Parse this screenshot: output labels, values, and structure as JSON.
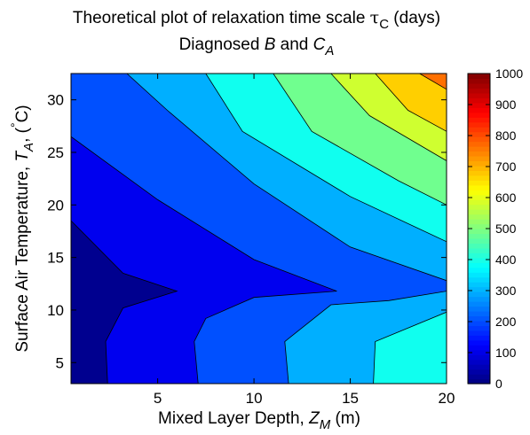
{
  "chart_data": {
    "type": "contour",
    "title_line1": {
      "prefix": "Theoretical plot of relaxation time scale ",
      "symbol": "τ",
      "subscript": "C",
      "suffix": " (days)"
    },
    "title_line2": {
      "prefix": "Diagnosed ",
      "italic_b": "B",
      "middle": " and ",
      "italic_c": "C",
      "subscript": "A"
    },
    "xlabel": {
      "prefix": "Mixed Layer Depth, ",
      "italic": "Z",
      "subscript": "M",
      "suffix": " (m)"
    },
    "ylabel": {
      "prefix": "Surface Air Temperature, ",
      "italic": "T",
      "subscript": "A",
      "suffix": ", (",
      "degree": "°",
      "unit": "C)"
    },
    "xlim": [
      0.5,
      20
    ],
    "ylim": [
      3,
      32.5
    ],
    "xticks": [
      "5",
      "10",
      "15",
      "20"
    ],
    "xtick_values": [
      5,
      10,
      15,
      20
    ],
    "yticks": [
      "5",
      "10",
      "15",
      "20",
      "25",
      "30"
    ],
    "ytick_values": [
      5,
      10,
      15,
      20,
      25,
      30
    ],
    "colorbar": {
      "min": 0,
      "max": 1000,
      "colormap": "jet",
      "ticks": [
        "0",
        "100",
        "200",
        "300",
        "400",
        "500",
        "600",
        "700",
        "800",
        "900",
        "1000"
      ],
      "tick_values": [
        0,
        100,
        200,
        300,
        400,
        500,
        600,
        700,
        800,
        900,
        1000
      ]
    },
    "levels": [
      0,
      100,
      200,
      300,
      400,
      500,
      600,
      700,
      800,
      900
    ],
    "level_colors": [
      "#00008F",
      "#0000EF",
      "#0050FF",
      "#00AFFF",
      "#10FFEF",
      "#70FF8F",
      "#CFFF30",
      "#FFCF00",
      "#FF7000",
      "#FF1000"
    ],
    "contour_lines": [
      {
        "level": 100,
        "points": [
          [
            0.5,
            18.5
          ],
          [
            3.2,
            13.5
          ],
          [
            6.0,
            11.8
          ],
          [
            3.2,
            10.2
          ],
          [
            2.3,
            7.0
          ],
          [
            2.4,
            3
          ]
        ]
      },
      {
        "level": 200,
        "points": [
          [
            0.5,
            26.5
          ],
          [
            5.0,
            20.5
          ],
          [
            10.0,
            14.8
          ],
          [
            14.3,
            11.8
          ],
          [
            10.0,
            11.2
          ],
          [
            7.5,
            9.2
          ],
          [
            6.9,
            7.0
          ],
          [
            7.1,
            3
          ]
        ]
      },
      {
        "level": 300,
        "points": [
          [
            3.4,
            32.5
          ],
          [
            5.5,
            29.0
          ],
          [
            10.0,
            22.0
          ],
          [
            15.0,
            16.0
          ],
          [
            20.0,
            12.8
          ],
          [
            20.0,
            11.8
          ],
          [
            17.0,
            10.9
          ],
          [
            14.0,
            10.5
          ],
          [
            11.6,
            7.0
          ],
          [
            11.8,
            3
          ]
        ]
      },
      {
        "level": 400,
        "points": [
          [
            7.5,
            32.5
          ],
          [
            9.4,
            27.0
          ],
          [
            15.0,
            20.8
          ],
          [
            20.0,
            16.5
          ]
        ]
      },
      {
        "level": 400,
        "points": [
          [
            20.0,
            9.8
          ],
          [
            16.3,
            7.0
          ],
          [
            16.2,
            3
          ]
        ]
      },
      {
        "level": 500,
        "points": [
          [
            11.0,
            32.5
          ],
          [
            13.0,
            27.0
          ],
          [
            17.5,
            22.3
          ],
          [
            20.0,
            20.0
          ]
        ]
      },
      {
        "level": 600,
        "points": [
          [
            14.0,
            32.5
          ],
          [
            16.0,
            28.5
          ],
          [
            20.0,
            24.2
          ]
        ]
      },
      {
        "level": 700,
        "points": [
          [
            16.3,
            32.5
          ],
          [
            18.0,
            29.0
          ],
          [
            20.0,
            27.0
          ]
        ]
      },
      {
        "level": 800,
        "points": [
          [
            18.6,
            32.5
          ],
          [
            20.0,
            31.0
          ]
        ]
      }
    ]
  }
}
